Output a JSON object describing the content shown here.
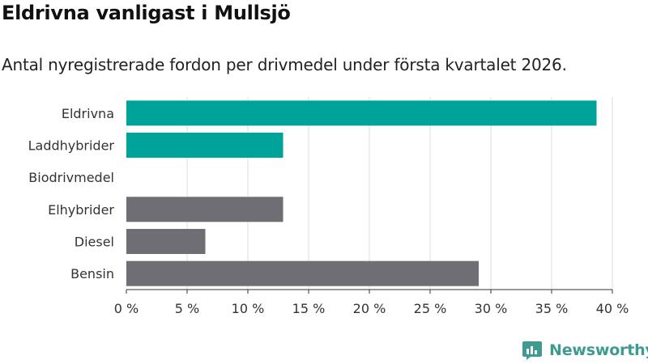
{
  "header": {
    "title": "Eldrivna vanligast i Mullsjö",
    "subtitle": "Antal nyregistrerade fordon per drivmedel under första kvartalet 2026."
  },
  "brand": {
    "name": "Newsworthy",
    "icon": "newsworthy-logo-icon",
    "color": "#3d9c8f"
  },
  "chart_data": {
    "type": "bar",
    "orientation": "horizontal",
    "title": "",
    "xlabel": "",
    "ylabel": "",
    "categories": [
      "Eldrivna",
      "Laddhybrider",
      "Biodrivmedel",
      "Elhybrider",
      "Diesel",
      "Bensin"
    ],
    "values": [
      38.7,
      12.9,
      0,
      12.9,
      6.5,
      29.0
    ],
    "bar_colors": [
      "#00a39a",
      "#00a39a",
      "#00a39a",
      "#6e6e74",
      "#6e6e74",
      "#6e6e74"
    ],
    "xlim": [
      0,
      40
    ],
    "x_ticks": [
      0,
      5,
      10,
      15,
      20,
      25,
      30,
      35,
      40
    ],
    "x_tick_labels": [
      "0 %",
      "5 %",
      "10 %",
      "15 %",
      "20 %",
      "25 %",
      "30 %",
      "35 %",
      "40 %"
    ],
    "grid": true,
    "legend": "none"
  }
}
